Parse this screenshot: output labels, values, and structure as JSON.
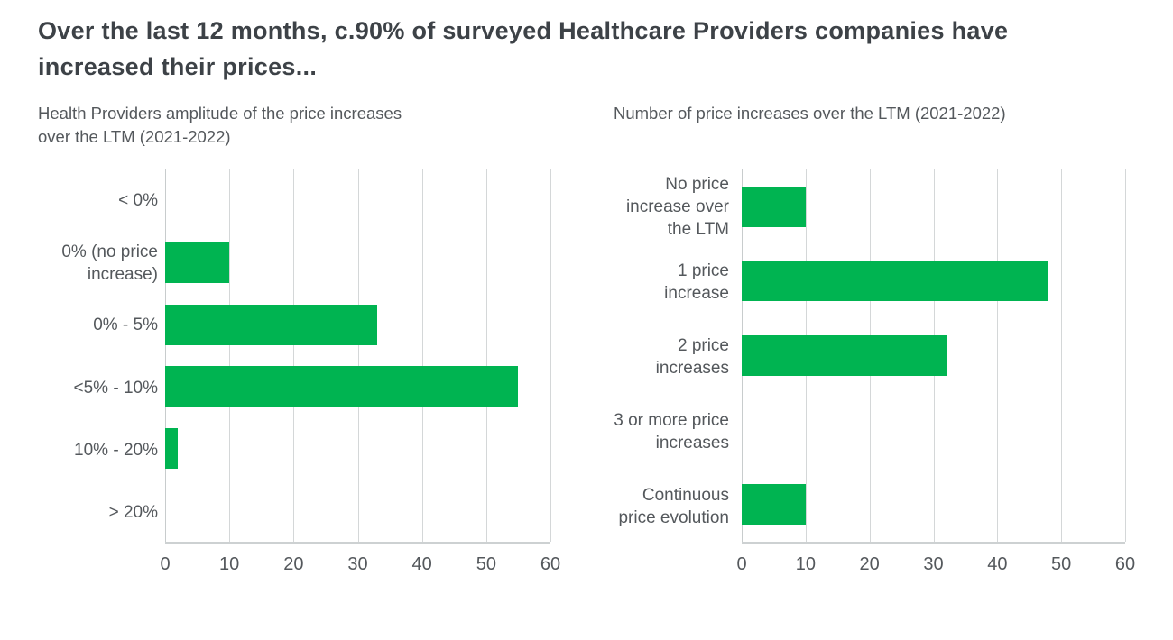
{
  "header": {
    "title": "Over the last 12 months, c.90% of surveyed Healthcare Providers companies have increased their prices..."
  },
  "colors": {
    "bar_green": "#00b451",
    "title_text": "#3d4247",
    "body_text": "#54585c",
    "gridline": "#d4d7d8",
    "axis_line": "#cdd1d2"
  },
  "chart_data": [
    {
      "type": "bar",
      "orientation": "horizontal",
      "title": "Health Providers amplitude of the price increases over the LTM (2021-2022)",
      "title_lines": [
        "Health Providers amplitude of the price increases",
        "over the LTM (2021-2022)"
      ],
      "categories": [
        "< 0%",
        "0% (no price increase)",
        "0% - 5%",
        "<5% - 10%",
        "10% - 20%",
        "> 20%"
      ],
      "category_lines": [
        [
          "< 0%"
        ],
        [
          "0% (no price",
          "increase)"
        ],
        [
          "0% - 5%"
        ],
        [
          "<5% - 10%"
        ],
        [
          "10% - 20%"
        ],
        [
          "> 20%"
        ]
      ],
      "values": [
        0,
        10,
        33,
        55,
        2,
        0
      ],
      "xlabel": "",
      "ylabel": "",
      "xlim": [
        0,
        60
      ],
      "xticks": [
        0,
        10,
        20,
        30,
        40,
        50,
        60
      ],
      "grid": true,
      "legend": false,
      "bar_color": "#00b451"
    },
    {
      "type": "bar",
      "orientation": "horizontal",
      "title": "Number of price increases over the LTM (2021-2022)",
      "title_lines": [
        "Number of price increases over the LTM (2021-2022)"
      ],
      "categories": [
        "No price increase over the LTM",
        "1 price increase",
        "2 price increases",
        "3 or more price increases",
        "Continuous price evolution"
      ],
      "category_lines": [
        [
          "No price",
          "increase over",
          "the LTM"
        ],
        [
          "1 price",
          "increase"
        ],
        [
          "2 price",
          "increases"
        ],
        [
          "3 or more price",
          "increases"
        ],
        [
          "Continuous",
          "price evolution"
        ]
      ],
      "values": [
        10,
        48,
        32,
        0,
        10
      ],
      "xlabel": "",
      "ylabel": "",
      "xlim": [
        0,
        60
      ],
      "xticks": [
        0,
        10,
        20,
        30,
        40,
        50,
        60
      ],
      "grid": true,
      "legend": false,
      "bar_color": "#00b451"
    }
  ]
}
